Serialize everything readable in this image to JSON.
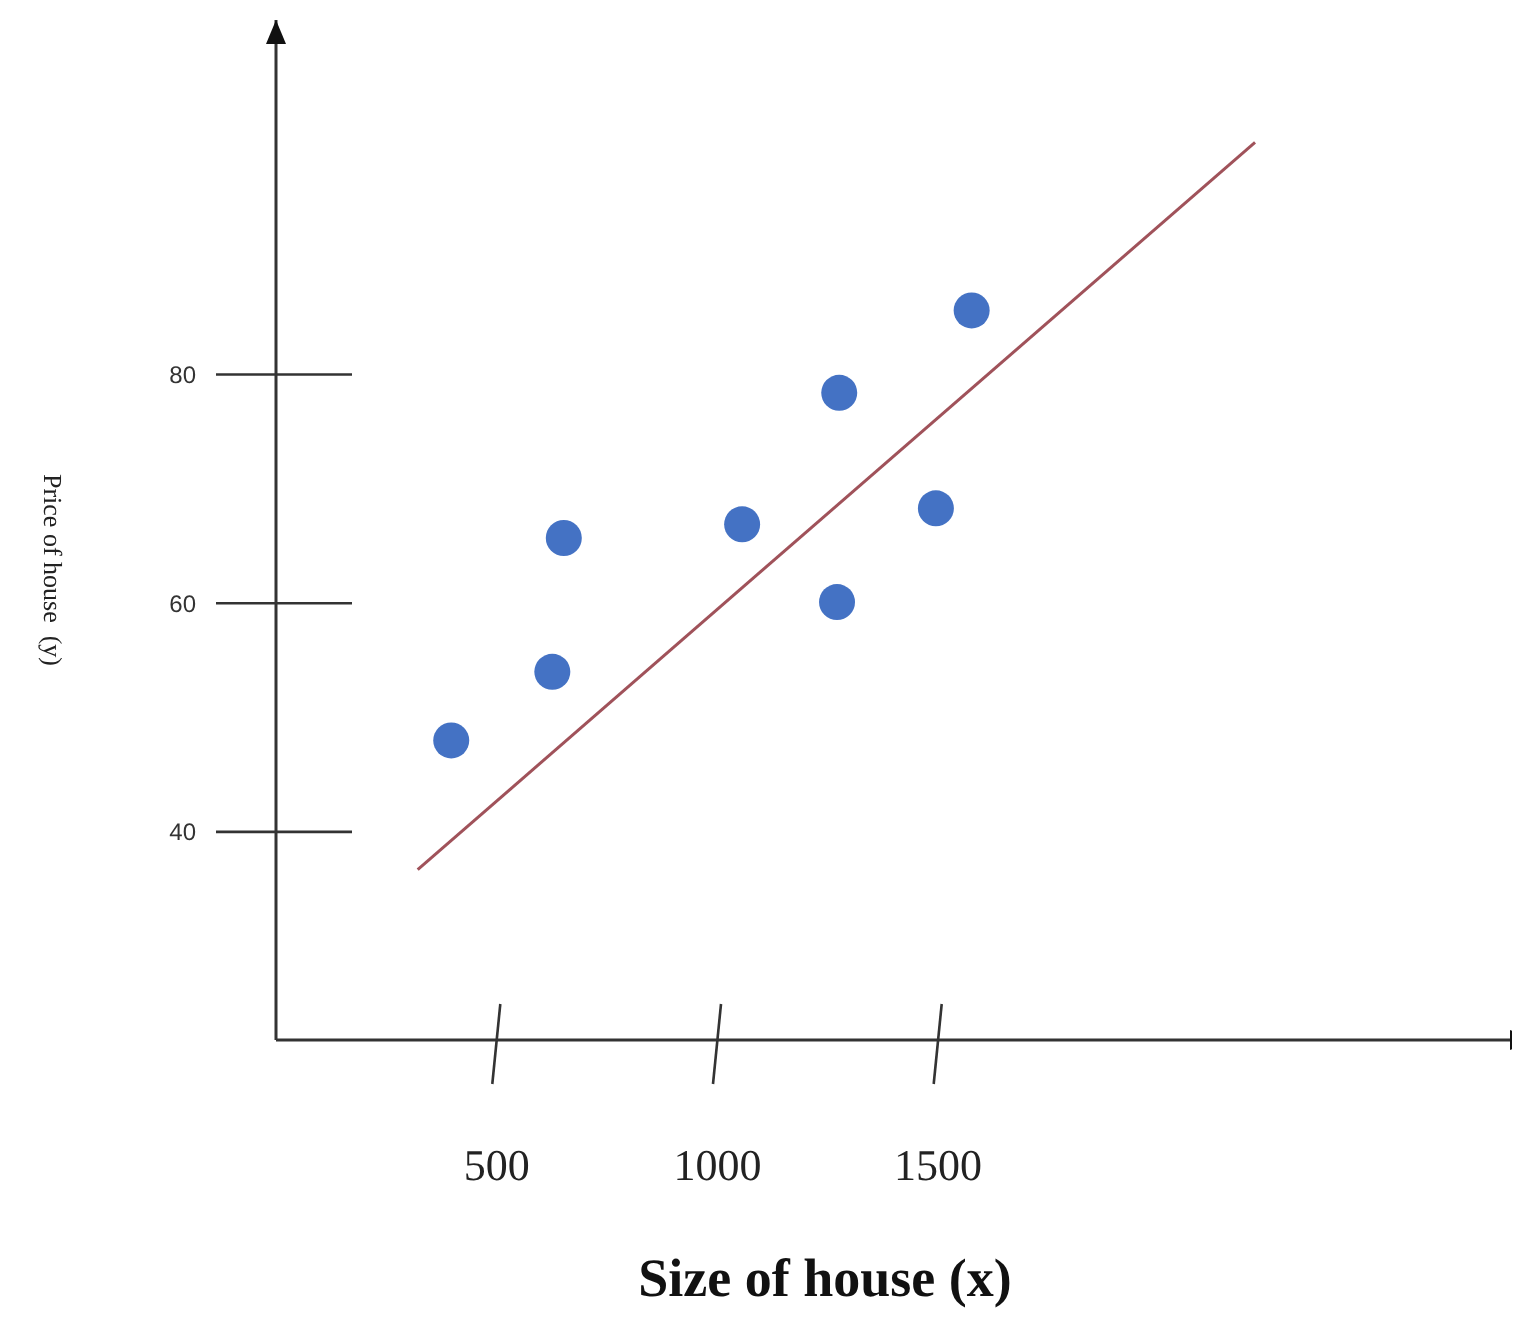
{
  "chart_data": {
    "type": "scatter",
    "xlabel": "Size of house (x)",
    "ylabel": "Price of house  (y)",
    "series": [
      {
        "color": "#4472c4",
        "x": [
          397,
          626,
          652,
          1056,
          1276,
          1271,
          1495,
          1576
        ],
        "values": [
          48,
          54,
          65.7,
          66.9,
          78.4,
          60.1,
          68.3,
          85.6
        ]
      },
      {
        "type": "line",
        "marker": "none",
        "color": "#a0525a",
        "x": [
          321,
          2218
        ],
        "values": [
          36.7,
          100.3
        ]
      }
    ],
    "xlim": [
      0,
      2850
    ],
    "ylim": [
      21.8,
      111
    ],
    "xticks": [
      500,
      1000,
      1500
    ],
    "yticks": [
      40,
      60,
      80
    ],
    "grid": false,
    "marker": "circle"
  }
}
